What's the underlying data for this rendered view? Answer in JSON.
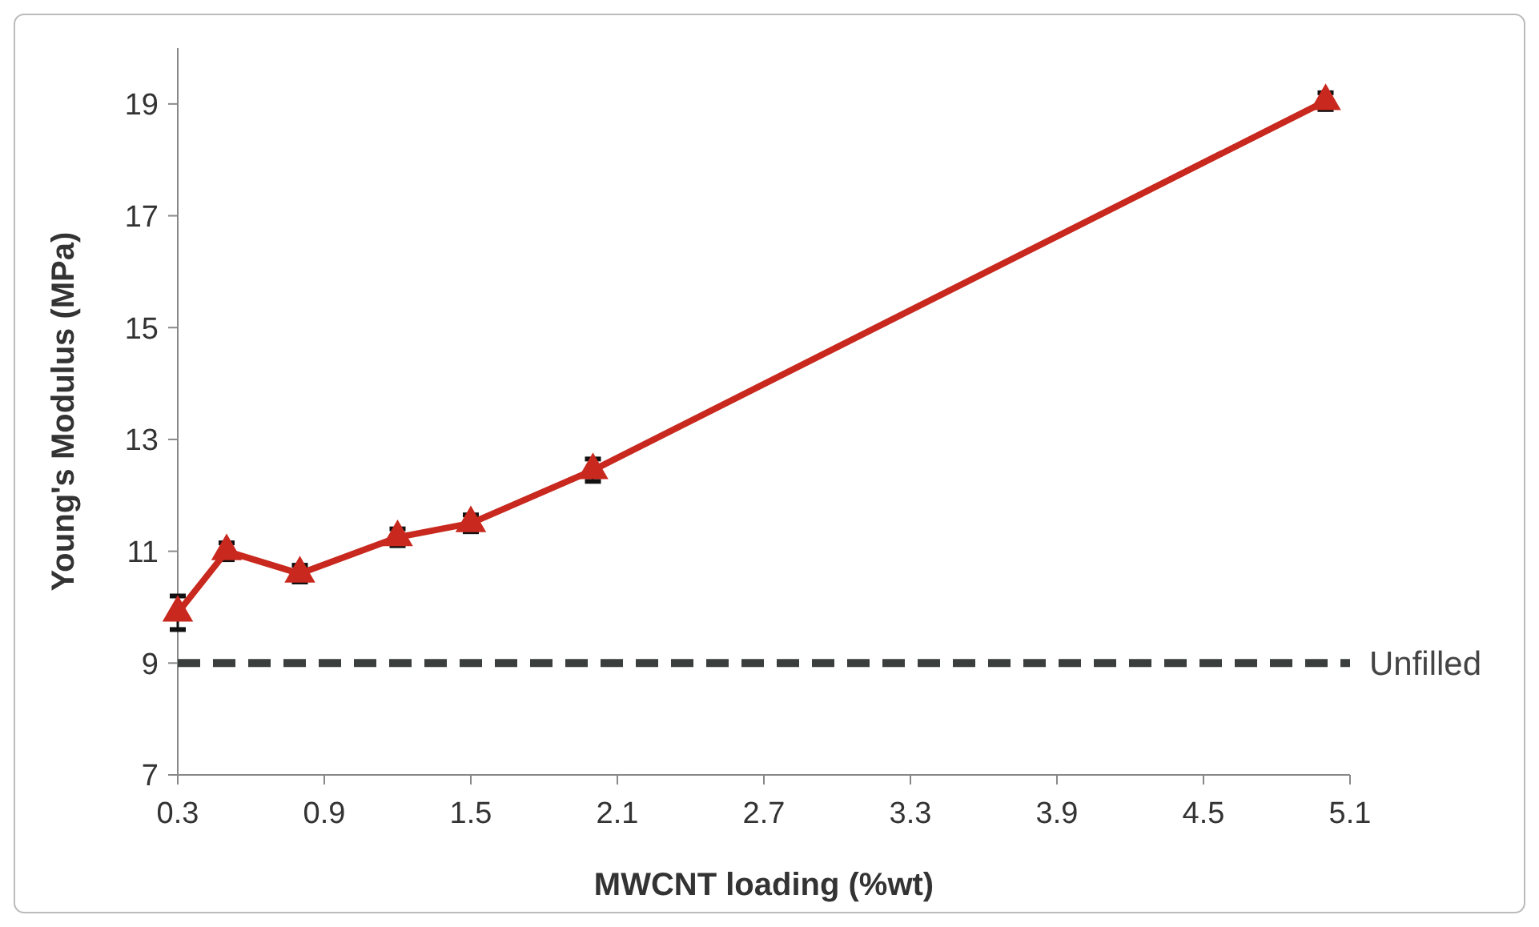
{
  "chart_data": {
    "type": "line",
    "xlabel": "MWCNT loading (%wt)",
    "ylabel": "Young's Modulus (MPa)",
    "x": [
      0.3,
      0.5,
      0.8,
      1.2,
      1.5,
      2.0,
      5.0
    ],
    "series": [
      {
        "color": "#c8281e",
        "values": [
          9.9,
          11.0,
          10.6,
          11.25,
          11.5,
          12.45,
          19.05
        ],
        "errors": [
          0.3,
          0.15,
          0.15,
          0.15,
          0.15,
          0.2,
          0.15
        ]
      }
    ],
    "xlim": [
      0.3,
      5.1
    ],
    "xticks": [
      0.3,
      0.9,
      1.5,
      2.1,
      2.7,
      3.3,
      3.9,
      4.5,
      5.1
    ],
    "ylim": [
      7,
      20
    ],
    "yticks": [
      7,
      9,
      11,
      13,
      15,
      17,
      19
    ],
    "ref_lines": [
      {
        "axis": "y",
        "value": 9,
        "label": "Unfilled",
        "color": "#3a3f3d",
        "line_style": "dashed"
      }
    ],
    "grid": false,
    "marker": "triangle",
    "line_style": "solid"
  }
}
